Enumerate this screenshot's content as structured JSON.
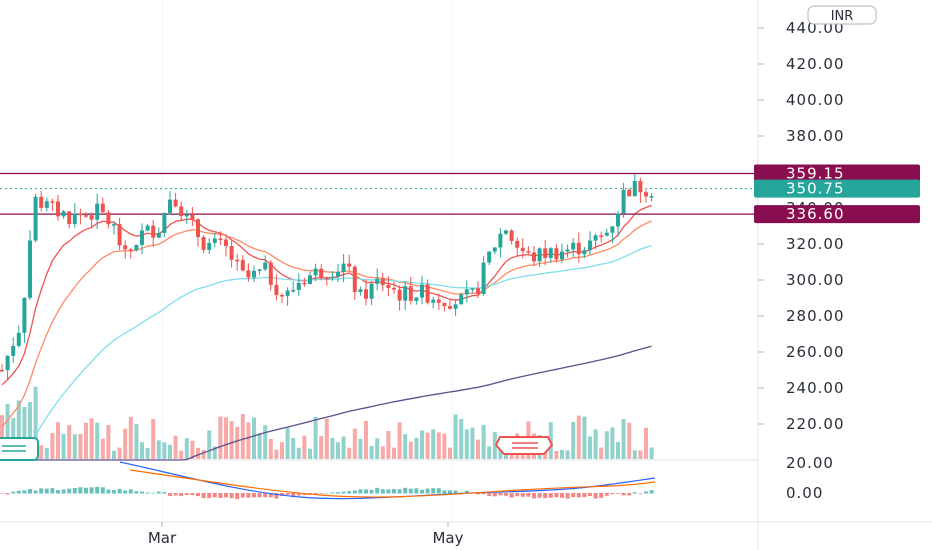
{
  "chart_data": {
    "type": "candlestick",
    "currency": "INR",
    "price_axis": {
      "ticks": [
        "440.00",
        "420.00",
        "400.00",
        "380.00",
        "360.00",
        "340.00",
        "320.00",
        "300.00",
        "280.00",
        "260.00",
        "240.00",
        "220.00"
      ],
      "range": [
        205,
        445
      ]
    },
    "indicator_axis": {
      "ticks": [
        "20.00",
        "0.00"
      ]
    },
    "x_ticks": [
      "Mar",
      "May"
    ],
    "price_tags": [
      {
        "label": "359.15",
        "value": 359.15,
        "color": "#880e4f"
      },
      {
        "label": "350.75",
        "value": 350.75,
        "color": "#26a69a"
      },
      {
        "label": "336.60",
        "value": 336.6,
        "color": "#880e4f"
      }
    ],
    "horizontal_levels": [
      359.15,
      336.6
    ],
    "colors": {
      "up": "#26a69a",
      "down": "#ef5350",
      "level": "#880e4f",
      "ema1": "#ef5350",
      "ema2": "#ff8a65",
      "ema3": "#80deea",
      "ema4": "#5c4f8c"
    }
  }
}
